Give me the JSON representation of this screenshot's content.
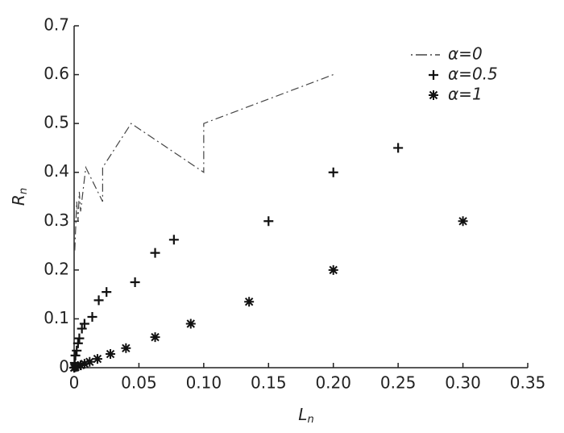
{
  "chart_data": {
    "type": "scatter",
    "xlabel": {
      "text": "L",
      "subscript": "n"
    },
    "ylabel": {
      "text": "R",
      "subscript": "n"
    },
    "xlim": [
      0,
      0.35
    ],
    "ylim": [
      0,
      0.7
    ],
    "xticks": [
      0,
      0.05,
      {
        "value": 0.1,
        "label": "0.10"
      },
      0.15,
      {
        "value": 0.2,
        "label": "0.20"
      },
      0.25,
      {
        "value": 0.3,
        "label": "0.30"
      },
      0.35
    ],
    "yticks": [
      0,
      0.1,
      0.2,
      0.3,
      0.4,
      0.5,
      0.6,
      0.7
    ],
    "legend": "upper right",
    "series": [
      {
        "name": "α=0",
        "color": "#444444",
        "marker": "dashdot-line",
        "x": [
          0.0005,
          0.002,
          0.003,
          0.004,
          0.005,
          0.009,
          0.022,
          0.022,
          0.044,
          0.1,
          0.1,
          0.2
        ],
        "values": [
          0.24,
          0.34,
          0.3,
          0.36,
          0.32,
          0.41,
          0.34,
          0.41,
          0.5,
          0.4,
          0.5,
          0.6
        ]
      },
      {
        "name": "α=0.5",
        "color": "#111111",
        "marker": "plus",
        "x": [
          0.25,
          0.2,
          0.15,
          0.077,
          0.0625,
          0.047,
          0.025,
          0.019,
          0.014,
          0.008,
          0.006,
          0.004,
          0.003,
          0.002,
          0.001,
          0.0005,
          0
        ],
        "values": [
          0.45,
          0.4,
          0.3,
          0.262,
          0.235,
          0.175,
          0.155,
          0.138,
          0.104,
          0.09,
          0.08,
          0.06,
          0.05,
          0.035,
          0.025,
          0.01,
          0
        ]
      },
      {
        "name": "α=1",
        "color": "#111111",
        "marker": "asterisk",
        "x": [
          0.3,
          0.2,
          0.135,
          0.09,
          0.0625,
          0.04,
          0.028,
          0.018,
          0.012,
          0.008,
          0.005,
          0.003,
          0.001,
          0
        ],
        "values": [
          0.3,
          0.2,
          0.135,
          0.09,
          0.0625,
          0.04,
          0.028,
          0.018,
          0.012,
          0.008,
          0.005,
          0.003,
          0.001,
          0
        ]
      }
    ]
  }
}
